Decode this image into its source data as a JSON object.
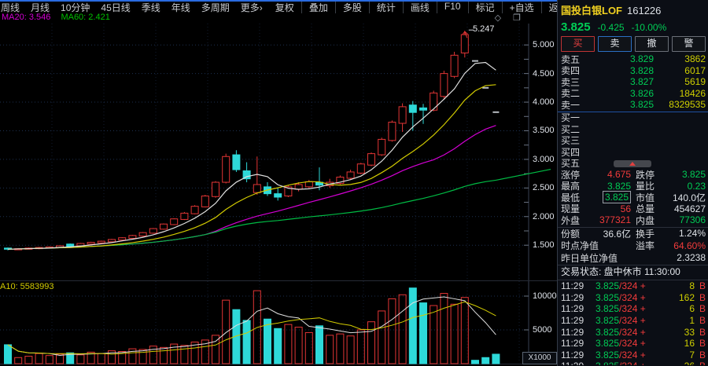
{
  "toolbar": {
    "left_items": [
      "周线",
      "月线",
      "10分钟",
      "45日线",
      "季线",
      "年线",
      "多周期",
      "更多›"
    ],
    "right_items": [
      "复权",
      "叠加",
      "多股",
      "统计",
      "画线",
      "F10",
      "标记",
      "+自选",
      "返回"
    ]
  },
  "indicator_row": {
    "ma20_label": "MA20: 3.546",
    "ma60_label": "MA60: 2.421"
  },
  "chart": {
    "type": "candlestick",
    "price_axis_labels": [
      "5.000",
      "4.500",
      "4.000",
      "3.500",
      "3.000",
      "2.500",
      "2.000",
      "1.500"
    ],
    "high_annotation": "5.247",
    "candles": [
      [
        1.45,
        1.46,
        1.41,
        1.43,
        2.8
      ],
      [
        1.43,
        1.45,
        1.42,
        1.44,
        0.9
      ],
      [
        1.44,
        1.46,
        1.43,
        1.45,
        1.1
      ],
      [
        1.44,
        1.47,
        1.43,
        1.46,
        1.5
      ],
      [
        1.45,
        1.48,
        1.44,
        1.47,
        1.2
      ],
      [
        1.46,
        1.5,
        1.45,
        1.49,
        1.4
      ],
      [
        1.52,
        1.53,
        1.46,
        1.48,
        1.6
      ],
      [
        1.49,
        1.54,
        1.48,
        1.53,
        1.3
      ],
      [
        1.52,
        1.56,
        1.51,
        1.55,
        1.7
      ],
      [
        1.54,
        1.58,
        1.53,
        1.57,
        1.5
      ],
      [
        1.56,
        1.61,
        1.55,
        1.6,
        1.9
      ],
      [
        1.59,
        1.64,
        1.58,
        1.63,
        1.8
      ],
      [
        1.62,
        1.68,
        1.61,
        1.67,
        2.2
      ],
      [
        1.66,
        1.73,
        1.65,
        1.72,
        2.1
      ],
      [
        1.71,
        1.8,
        1.7,
        1.79,
        2.6
      ],
      [
        1.78,
        1.88,
        1.77,
        1.87,
        2.4
      ],
      [
        1.86,
        1.97,
        1.85,
        1.96,
        2.9
      ],
      [
        1.95,
        2.08,
        1.94,
        2.06,
        2.7
      ],
      [
        2.05,
        2.2,
        2.04,
        2.18,
        3.2
      ],
      [
        2.17,
        2.38,
        2.16,
        2.36,
        3.5
      ],
      [
        2.35,
        2.62,
        2.33,
        2.6,
        4.2
      ],
      [
        2.6,
        3.1,
        2.58,
        3.05,
        9.4
      ],
      [
        3.08,
        3.16,
        2.78,
        2.82,
        8.0
      ],
      [
        2.8,
        2.95,
        2.6,
        2.66,
        6.4
      ],
      [
        2.42,
        3.05,
        2.38,
        2.56,
        10.8
      ],
      [
        2.52,
        2.6,
        2.36,
        2.4,
        6.6
      ],
      [
        2.4,
        2.5,
        2.28,
        2.34,
        5.2
      ],
      [
        2.36,
        2.55,
        2.34,
        2.52,
        5.8
      ],
      [
        2.48,
        2.6,
        2.44,
        2.56,
        5.4
      ],
      [
        2.52,
        2.64,
        2.5,
        2.61,
        4.6
      ],
      [
        2.6,
        2.86,
        2.46,
        2.55,
        5.6
      ],
      [
        2.54,
        2.66,
        2.5,
        2.6,
        4.2
      ],
      [
        2.58,
        2.72,
        2.56,
        2.69,
        4.4
      ],
      [
        2.67,
        2.82,
        2.64,
        2.78,
        4.1
      ],
      [
        2.76,
        2.94,
        2.74,
        2.92,
        5.0
      ],
      [
        2.9,
        3.12,
        2.88,
        3.1,
        6.2
      ],
      [
        3.08,
        3.38,
        3.06,
        3.35,
        7.8
      ],
      [
        3.33,
        3.68,
        3.31,
        3.65,
        9.6
      ],
      [
        3.63,
        3.98,
        3.48,
        3.92,
        10.2
      ],
      [
        3.95,
        4.02,
        3.5,
        3.82,
        11.2
      ],
      [
        3.9,
        3.97,
        3.62,
        3.86,
        9.0
      ],
      [
        3.86,
        4.2,
        3.84,
        4.16,
        8.6
      ],
      [
        4.1,
        4.55,
        4.06,
        4.5,
        10.4
      ],
      [
        4.45,
        4.88,
        4.42,
        4.82,
        8.8
      ],
      [
        4.86,
        5.247,
        4.78,
        5.18,
        9.8
      ],
      [
        4.72,
        4.72,
        4.72,
        4.72,
        0.5
      ],
      [
        4.25,
        4.25,
        4.25,
        4.25,
        0.9
      ],
      [
        3.825,
        3.825,
        3.825,
        3.825,
        1.4
      ]
    ],
    "colors": {
      "up": "#e23535",
      "down": "#2ed9d9",
      "flat": "#b8bcc2",
      "ma5": "#e0e0e0",
      "ma10": "#d2cb00",
      "ma20": "#d400d4",
      "ma60": "#00bb44"
    }
  },
  "volume": {
    "ma_label": "A10: 5583993",
    "axis_labels": [
      "10000",
      "5000"
    ],
    "unit_label": "X1000"
  },
  "panel": {
    "name": "国投白银LOF",
    "code": "161226",
    "price": "3.825",
    "change": "-0.425",
    "change_pct": "-10.00%",
    "buttons": [
      {
        "label": "买",
        "style": "buy"
      },
      {
        "label": "卖",
        "style": "sell"
      },
      {
        "label": "撤",
        "style": "cancel"
      },
      {
        "label": "警",
        "style": "alert"
      }
    ],
    "sell_levels": [
      {
        "label": "卖五",
        "price": "3.829",
        "vol": "3862"
      },
      {
        "label": "卖四",
        "price": "3.828",
        "vol": "6017"
      },
      {
        "label": "卖三",
        "price": "3.827",
        "vol": "5619"
      },
      {
        "label": "卖二",
        "price": "3.826",
        "vol": "18426"
      },
      {
        "label": "卖一",
        "price": "3.825",
        "vol": "8329535"
      }
    ],
    "buy_levels": [
      "买一",
      "买二",
      "买三",
      "买四",
      "买五"
    ],
    "stats_rows": [
      [
        {
          "label": "涨停",
          "value": "4.675",
          "color": "red"
        },
        {
          "label": "跌停",
          "value": "3.825",
          "color": "green"
        }
      ],
      [
        {
          "label": "最高",
          "value": "3.825",
          "color": "green"
        },
        {
          "label": "量比",
          "value": "0.23",
          "color": "green"
        }
      ],
      [
        {
          "label": "最低",
          "value": "3.825",
          "color": "green",
          "boxed": true
        },
        {
          "label": "市值",
          "value": "140.0亿",
          "color": "white"
        }
      ],
      [
        {
          "label": "现量",
          "value": "56",
          "color": "red"
        },
        {
          "label": "总量",
          "value": "454627",
          "color": "white"
        }
      ],
      [
        {
          "label": "外盘",
          "value": "377321",
          "color": "red"
        },
        {
          "label": "内盘",
          "value": "77306",
          "color": "green"
        }
      ]
    ],
    "fund_rows": [
      [
        {
          "label": "份额",
          "value": "36.6亿",
          "color": "white"
        },
        {
          "label": "换手",
          "value": "1.24%",
          "color": "white"
        }
      ],
      [
        {
          "label": "时点净值",
          "value": "",
          "color": "white"
        },
        {
          "label": "溢率",
          "value": "64.60%",
          "color": "red"
        }
      ]
    ],
    "nav_row": {
      "label": "昨日单位净值",
      "value": "2.3238",
      "color": "white"
    },
    "status": "交易状态: 盘中休市 11:30:00",
    "trades": [
      {
        "time": "11:29",
        "price": "3.825",
        "deal": "/324 +",
        "vol": "8",
        "flag": "B"
      },
      {
        "time": "11:29",
        "price": "3.825",
        "deal": "/324 +",
        "vol": "162",
        "flag": "B"
      },
      {
        "time": "11:29",
        "price": "3.825",
        "deal": "/324 +",
        "vol": "6",
        "flag": "B"
      },
      {
        "time": "11:29",
        "price": "3.825",
        "deal": "/324 +",
        "vol": "1",
        "flag": "B"
      },
      {
        "time": "11:29",
        "price": "3.825",
        "deal": "/324 +",
        "vol": "33",
        "flag": "B"
      },
      {
        "time": "11:29",
        "price": "3.825",
        "deal": "/324 +",
        "vol": "16",
        "flag": "B"
      },
      {
        "time": "11:29",
        "price": "3.825",
        "deal": "/324 +",
        "vol": "7",
        "flag": "B"
      },
      {
        "time": "11:29",
        "price": "3.825",
        "deal": "/324 +",
        "vol": "26",
        "flag": "B"
      }
    ]
  }
}
